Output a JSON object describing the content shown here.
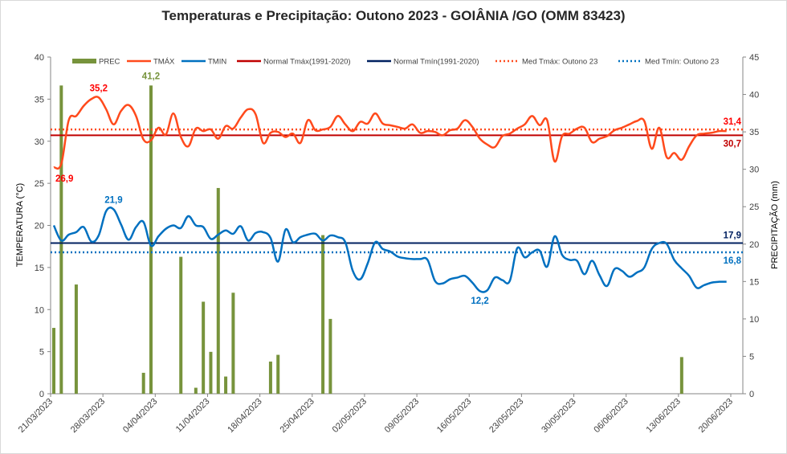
{
  "chart_data": {
    "type": "line",
    "title": "Temperaturas e Precipitação: Outono 2023 - GOIÂNIA /GO (OMM 83423)",
    "ylabel": "TEMPERATURA  (°C)",
    "y2label": "PRECIPITAÇÃO (mm)",
    "xlabel": "",
    "ylim": [
      0,
      40
    ],
    "y2lim": [
      0,
      45
    ],
    "yticks": [
      "0",
      "5",
      "10",
      "15",
      "20",
      "25",
      "30",
      "35",
      "40"
    ],
    "y2ticks": [
      "0",
      "5",
      "10",
      "15",
      "20",
      "25",
      "30",
      "35",
      "40",
      "45"
    ],
    "xticks": [
      "21/03/2023",
      "28/03/2023",
      "04/04/2023",
      "11/04/2023",
      "18/04/2023",
      "25/04/2023",
      "02/05/2023",
      "09/05/2023",
      "16/05/2023",
      "23/05/2023",
      "30/05/2023",
      "06/06/2023",
      "13/06/2023",
      "20/06/2023"
    ],
    "grid": false,
    "legend_position": "top",
    "days": 91,
    "start_date": "21/03/2023",
    "series": [
      {
        "name": "PREC",
        "type": "bar",
        "axis": "right",
        "color": "#77933c",
        "points": [
          [
            0,
            8.8
          ],
          [
            1,
            41.2
          ],
          [
            3,
            14.6
          ],
          [
            12,
            2.8
          ],
          [
            13,
            41.2
          ],
          [
            17,
            18.3
          ],
          [
            19,
            0.8
          ],
          [
            20,
            12.3
          ],
          [
            21,
            5.6
          ],
          [
            22,
            27.5
          ],
          [
            23,
            2.3
          ],
          [
            24,
            13.5
          ],
          [
            29,
            4.3
          ],
          [
            30,
            5.2
          ],
          [
            36,
            21.2
          ],
          [
            37,
            10.0
          ],
          [
            84,
            4.9
          ]
        ]
      },
      {
        "name": "TMÁX",
        "type": "line",
        "axis": "left",
        "color": "#ff4a1c",
        "values": [
          26.9,
          27.3,
          32.5,
          33.0,
          34.2,
          35.0,
          35.2,
          33.8,
          32.0,
          33.6,
          34.3,
          33.0,
          30.2,
          30.1,
          31.6,
          30.8,
          33.3,
          30.5,
          29.4,
          31.5,
          31.2,
          31.4,
          30.3,
          31.8,
          31.5,
          32.8,
          33.8,
          33.2,
          29.8,
          31.0,
          31.1,
          30.5,
          30.9,
          29.8,
          32.5,
          31.3,
          31.4,
          31.7,
          33.0,
          32.0,
          31.2,
          32.3,
          32.1,
          33.3,
          32.1,
          31.9,
          31.7,
          31.5,
          32.0,
          31.0,
          31.2,
          31.1,
          30.7,
          31.3,
          31.5,
          32.5,
          31.7,
          30.3,
          29.6,
          29.3,
          30.6,
          30.9,
          31.5,
          32.0,
          33.0,
          31.9,
          32.5,
          27.6,
          30.6,
          30.9,
          31.5,
          31.6,
          29.9,
          30.3,
          30.6,
          31.3,
          31.6,
          32.0,
          32.4,
          32.4,
          29.1,
          31.6,
          28.1,
          28.6,
          27.8,
          29.4,
          30.7,
          30.9,
          31.0,
          31.2,
          31.2
        ]
      },
      {
        "name": "TMIN",
        "type": "line",
        "axis": "left",
        "color": "#0070c0",
        "values": [
          20.0,
          18.2,
          18.9,
          19.2,
          19.8,
          18.1,
          18.8,
          21.7,
          21.9,
          20.1,
          18.3,
          19.8,
          20.4,
          17.6,
          18.7,
          19.6,
          20.0,
          19.7,
          21.1,
          20.0,
          19.8,
          18.4,
          18.9,
          19.4,
          19.0,
          19.9,
          18.2,
          19.1,
          19.2,
          18.5,
          15.7,
          19.5,
          18.0,
          18.6,
          18.9,
          19.0,
          18.2,
          18.8,
          18.6,
          18.0,
          14.6,
          13.6,
          15.5,
          18.0,
          17.2,
          16.9,
          16.3,
          16.1,
          16.0,
          16.0,
          15.9,
          13.4,
          13.1,
          13.6,
          13.8,
          14.0,
          13.2,
          12.2,
          12.3,
          13.8,
          13.5,
          13.4,
          17.3,
          16.2,
          16.8,
          17.0,
          15.1,
          18.7,
          16.5,
          15.9,
          15.8,
          14.2,
          15.8,
          14.1,
          12.8,
          14.8,
          14.6,
          13.9,
          14.4,
          15.0,
          17.2,
          17.9,
          17.8,
          15.9,
          14.9,
          14.0,
          12.6,
          12.9,
          13.2,
          13.3,
          13.3
        ]
      },
      {
        "name": "Normal Tmáx(1991-2020)",
        "type": "hline",
        "axis": "left",
        "value": 30.7,
        "color": "#c00000",
        "dash": "solid"
      },
      {
        "name": "Normal Tmín(1991-2020)",
        "type": "hline",
        "axis": "left",
        "value": 17.9,
        "color": "#002060",
        "dash": "solid"
      },
      {
        "name": "Med Tmáx: Outono 23",
        "type": "hline",
        "axis": "left",
        "value": 31.4,
        "color": "#ff4a1c",
        "dash": "dotted"
      },
      {
        "name": "Med Tmín: Outono 23",
        "type": "hline",
        "axis": "left",
        "value": 16.8,
        "color": "#0070c0",
        "dash": "dotted"
      }
    ],
    "annotations": [
      {
        "text": "35,2",
        "day": 6,
        "value": 35.2,
        "axis": "left",
        "color": "#ff0000",
        "pos": "above"
      },
      {
        "text": "26,9",
        "day": 0,
        "value": 26.9,
        "axis": "left",
        "color": "#ff0000",
        "pos": "below-right"
      },
      {
        "text": "41,2",
        "day": 13,
        "value": 41.2,
        "axis": "right",
        "color": "#77933c",
        "pos": "above"
      },
      {
        "text": "21,9",
        "day": 8,
        "value": 21.9,
        "axis": "left",
        "color": "#0070c0",
        "pos": "above"
      },
      {
        "text": "12,2",
        "day": 57,
        "value": 12.2,
        "axis": "left",
        "color": "#0070c0",
        "pos": "below"
      },
      {
        "text": "31,4",
        "day": 90,
        "value": 31.4,
        "axis": "left",
        "color": "#ff0000",
        "pos": "above-end"
      },
      {
        "text": "30,7",
        "day": 90,
        "value": 30.7,
        "axis": "left",
        "color": "#c00000",
        "pos": "below-end"
      },
      {
        "text": "17,9",
        "day": 90,
        "value": 17.9,
        "axis": "left",
        "color": "#002060",
        "pos": "above-end"
      },
      {
        "text": "16,8",
        "day": 90,
        "value": 16.8,
        "axis": "left",
        "color": "#0070c0",
        "pos": "below-end"
      }
    ]
  }
}
